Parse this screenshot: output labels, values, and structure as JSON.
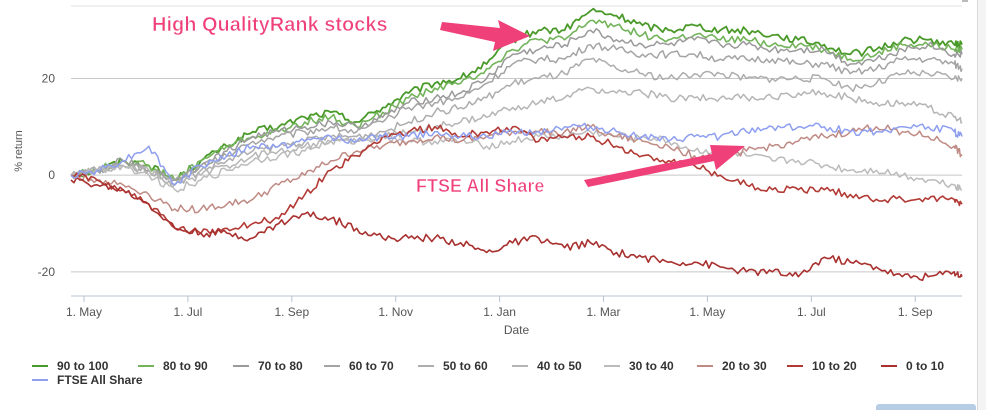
{
  "chart_data": {
    "type": "line",
    "title": "",
    "xlabel": "Date",
    "ylabel": "% return",
    "ylim": [
      -25,
      35
    ],
    "yticks": [
      -20,
      0,
      20
    ],
    "grid": true,
    "legend_placement": "bottom",
    "xtick_labels": [
      {
        "label": "1. May",
        "t": 0.25
      },
      {
        "label": "1. Jul",
        "t": 2.25
      },
      {
        "label": "1. Sep",
        "t": 4.25
      },
      {
        "label": "1. Nov",
        "t": 6.25
      },
      {
        "label": "1. Jan",
        "t": 8.25
      },
      {
        "label": "1. Mar",
        "t": 10.25
      },
      {
        "label": "1. May",
        "t": 12.25
      },
      {
        "label": "1. Jul",
        "t": 14.25
      },
      {
        "label": "1. Sep",
        "t": 16.25
      }
    ],
    "x_months": [
      0,
      0.5,
      1,
      1.5,
      2,
      2.5,
      3,
      3.5,
      4,
      4.5,
      5,
      5.5,
      6,
      6.5,
      7,
      7.5,
      8,
      8.5,
      9,
      9.5,
      10,
      10.5,
      11,
      11.5,
      12,
      12.5,
      13,
      13.5,
      14,
      14.5,
      15,
      15.5,
      16,
      16.5,
      17,
      17.15
    ],
    "series": [
      {
        "name": "90 to 100",
        "color": "#4a9a2a",
        "width": 1.8,
        "values": [
          0,
          1,
          3,
          2,
          -1,
          3,
          6,
          9,
          10,
          12,
          13,
          11,
          14,
          17,
          19,
          20,
          23,
          28,
          30,
          30,
          34,
          33,
          31,
          30,
          31,
          30,
          30,
          29,
          28,
          27,
          25,
          26,
          28,
          28,
          27,
          27
        ]
      },
      {
        "name": "80 to 90",
        "color": "#73b35a",
        "width": 1.6,
        "values": [
          0,
          1,
          3,
          2,
          -1,
          3,
          6,
          8,
          9,
          11,
          12,
          10,
          13,
          16,
          18,
          19,
          22,
          26,
          28,
          28,
          32,
          31,
          29,
          28,
          29,
          28,
          28,
          27,
          27,
          26,
          24,
          25,
          27,
          27,
          26,
          26
        ]
      },
      {
        "name": "70 to 80",
        "color": "#9a9a9a",
        "width": 1.5,
        "values": [
          0,
          1,
          3,
          1,
          -1,
          2,
          5,
          8,
          9,
          10,
          11,
          10,
          12,
          15,
          16,
          17,
          20,
          25,
          26,
          27,
          30,
          28,
          27,
          27,
          28,
          27,
          27,
          26,
          26,
          26,
          23,
          24,
          26,
          27,
          25,
          25
        ]
      },
      {
        "name": "60 to 70",
        "color": "#a4a4a4",
        "width": 1.5,
        "values": [
          0,
          1,
          2,
          1,
          -1,
          2,
          4,
          7,
          8,
          9,
          10,
          9,
          11,
          14,
          15,
          16,
          19,
          23,
          24,
          24,
          27,
          26,
          25,
          25,
          25,
          24,
          24,
          24,
          23,
          23,
          21,
          22,
          24,
          24,
          23,
          22
        ]
      },
      {
        "name": "50 to 60",
        "color": "#adadad",
        "width": 1.5,
        "values": [
          0,
          1,
          2,
          1,
          -2,
          1,
          3,
          5,
          6,
          7,
          8,
          8,
          9,
          11,
          13,
          14,
          16,
          19,
          20,
          21,
          24,
          22,
          21,
          20,
          21,
          21,
          20,
          20,
          20,
          20,
          18,
          19,
          21,
          21,
          20,
          20
        ]
      },
      {
        "name": "40 to 50",
        "color": "#b5b5b5",
        "width": 1.5,
        "values": [
          0,
          1,
          2,
          1,
          -2,
          0,
          2,
          4,
          5,
          6,
          7,
          7,
          8,
          9,
          10,
          11,
          12,
          14,
          15,
          16,
          18,
          17,
          17,
          16,
          16,
          16,
          16,
          16,
          17,
          17,
          16,
          15,
          15,
          14,
          12,
          11
        ]
      },
      {
        "name": "30 to 40",
        "color": "#bbbbbb",
        "width": 1.5,
        "values": [
          0,
          1,
          2,
          0,
          -3,
          -1,
          1,
          3,
          4,
          5,
          7,
          7,
          8,
          7,
          7,
          7,
          6,
          7,
          8,
          8,
          9,
          8,
          8,
          7,
          5,
          5,
          4,
          3,
          3,
          2,
          1,
          1,
          0,
          -1,
          -2,
          -3
        ]
      },
      {
        "name": "20 to 30",
        "color": "#c08a84",
        "width": 1.5,
        "values": [
          0,
          -1,
          -2,
          -4,
          -7,
          -7,
          -6,
          -5,
          -2,
          0,
          3,
          5,
          6,
          7,
          8,
          7,
          8,
          9,
          9,
          9,
          10,
          8,
          7,
          6,
          4,
          4,
          5,
          6,
          7,
          8,
          9,
          10,
          9,
          8,
          6,
          4
        ]
      },
      {
        "name": "10 to 20",
        "color": "#b23a35",
        "width": 1.6,
        "values": [
          0,
          -1,
          -3,
          -6,
          -11,
          -12,
          -11,
          -10,
          -9,
          -4,
          1,
          4,
          8,
          9,
          10,
          8,
          9,
          10,
          7,
          8,
          8,
          6,
          4,
          3,
          2,
          0,
          -2,
          -3,
          -3,
          -3,
          -4,
          -5,
          -5,
          -5,
          -5,
          -6
        ]
      },
      {
        "name": "0 to 10",
        "color": "#a8302e",
        "width": 1.6,
        "values": [
          -1,
          -2,
          -3,
          -6,
          -11,
          -12,
          -12,
          -13,
          -10,
          -8,
          -9,
          -11,
          -13,
          -13,
          -13,
          -14,
          -16,
          -14,
          -13,
          -15,
          -14,
          -16,
          -17,
          -18,
          -18,
          -19,
          -20,
          -20,
          -21,
          -17,
          -18,
          -19,
          -21,
          -21,
          -20,
          -21
        ]
      },
      {
        "name": "FTSE All Share",
        "color": "#8e9ff0",
        "width": 1.5,
        "values": [
          0,
          1,
          3,
          6,
          -2,
          2,
          4,
          6,
          6,
          7,
          8,
          7,
          8,
          8,
          9,
          8,
          8,
          9,
          9,
          10,
          10,
          9,
          8,
          7,
          8,
          8,
          9,
          10,
          10,
          10,
          9,
          9,
          10,
          10,
          9,
          8
        ]
      }
    ],
    "annotations": [
      {
        "text": "High QualityRank stocks",
        "color": "#f0407a"
      },
      {
        "text": "FTSE All Share",
        "color": "#f0407a"
      }
    ]
  }
}
